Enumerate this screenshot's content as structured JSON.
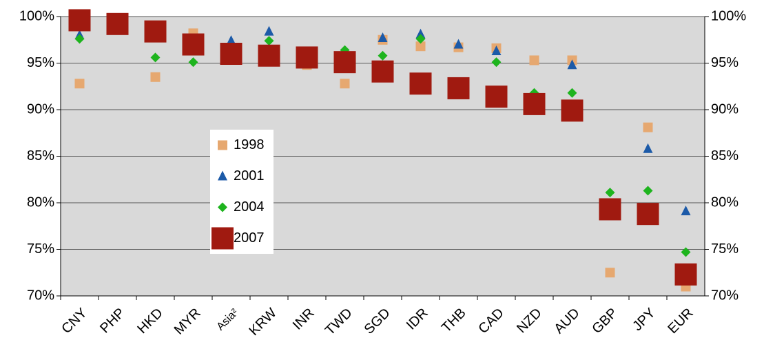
{
  "chart_data": {
    "type": "scatter",
    "categories": [
      "CNY",
      "PHP",
      "HKD",
      "MYR",
      "Asia²",
      "KRW",
      "INR",
      "TWD",
      "SGD",
      "IDR",
      "THB",
      "CAD",
      "NZD",
      "AUD",
      "GBP",
      "JPY",
      "EUR"
    ],
    "series": [
      {
        "name": "1998",
        "color": "#e6a870",
        "marker": "square",
        "values": [
          92.8,
          null,
          93.5,
          98.2,
          null,
          null,
          94.8,
          92.8,
          97.5,
          96.8,
          96.7,
          96.6,
          95.3,
          95.3,
          72.5,
          88.1,
          71.0
        ]
      },
      {
        "name": "2001",
        "color": "#1c5aa8",
        "marker": "triangle",
        "values": [
          98.0,
          null,
          null,
          null,
          97.4,
          98.4,
          null,
          null,
          97.7,
          98.1,
          97.0,
          96.3,
          90.2,
          94.8,
          null,
          85.8,
          79.1
        ]
      },
      {
        "name": "2004",
        "color": "#1eb41e",
        "marker": "diamond",
        "values": [
          97.6,
          null,
          95.6,
          95.1,
          null,
          97.4,
          null,
          96.4,
          95.8,
          97.6,
          null,
          95.1,
          91.8,
          91.8,
          81.1,
          81.3,
          74.7
        ]
      },
      {
        "name": "2007",
        "color": "#a01a10",
        "marker": "large-square",
        "values": [
          99.6,
          99.2,
          98.4,
          97.0,
          96.0,
          95.8,
          95.6,
          95.1,
          94.1,
          92.8,
          92.3,
          91.4,
          90.6,
          89.9,
          79.3,
          78.8,
          72.3
        ]
      }
    ],
    "ylim": [
      70,
      100
    ],
    "yticks": [
      {
        "value": 70,
        "label": "70%"
      },
      {
        "value": 75,
        "label": "75%"
      },
      {
        "value": 80,
        "label": "80%"
      },
      {
        "value": 85,
        "label": "85%"
      },
      {
        "value": 90,
        "label": "90%"
      },
      {
        "value": 95,
        "label": "95%"
      },
      {
        "value": 100,
        "label": "100%"
      }
    ],
    "y2lim": [
      70,
      100
    ],
    "y2ticks": [
      {
        "value": 70,
        "label": "70%"
      },
      {
        "value": 75,
        "label": "75%"
      },
      {
        "value": 80,
        "label": "80%"
      },
      {
        "value": 85,
        "label": "85%"
      },
      {
        "value": 90,
        "label": "90%"
      },
      {
        "value": 95,
        "label": "95%"
      },
      {
        "value": 100,
        "label": "100%"
      }
    ],
    "grid": true
  }
}
